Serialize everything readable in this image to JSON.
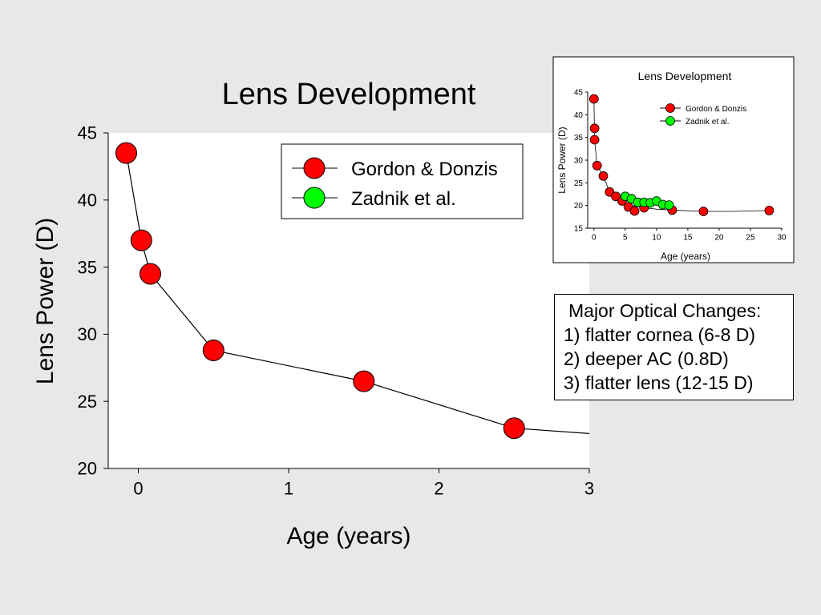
{
  "slide": {
    "background": "#e8e8e8"
  },
  "chart_data": [
    {
      "type": "line",
      "title": "Lens Development",
      "xlabel": "Age (years)",
      "ylabel": "Lens Power (D)",
      "xlim": [
        -0.2,
        3
      ],
      "ylim": [
        20,
        45
      ],
      "xticks": [
        0,
        1,
        2,
        3
      ],
      "yticks": [
        20,
        25,
        30,
        35,
        40,
        45
      ],
      "grid": false,
      "legend_position": "top-right",
      "series": [
        {
          "name": "Gordon & Donzis",
          "color": "#ff0000",
          "x": [
            -0.08,
            0.02,
            0.08,
            0.5,
            1.5,
            2.5
          ],
          "y": [
            43.5,
            37.0,
            34.5,
            28.8,
            26.5,
            23.0
          ]
        },
        {
          "name": "Zadnik et al.",
          "color": "#00ff00",
          "x": [],
          "y": []
        }
      ],
      "fit_line": {
        "x": [
          -0.08,
          0.02,
          0.08,
          0.5,
          1.5,
          2.5,
          3.0
        ],
        "y": [
          43.5,
          37.0,
          34.5,
          28.8,
          26.5,
          23.0,
          22.6
        ]
      }
    },
    {
      "type": "line",
      "title": "Lens Development",
      "xlabel": "Age (years)",
      "ylabel": "Lens Power (D)",
      "xlim": [
        -1,
        30
      ],
      "ylim": [
        15,
        45
      ],
      "xticks": [
        0,
        5,
        10,
        15,
        20,
        25,
        30
      ],
      "yticks": [
        15,
        20,
        25,
        30,
        35,
        40,
        45
      ],
      "grid": false,
      "legend_position": "top-right",
      "series": [
        {
          "name": "Gordon & Donzis",
          "color": "#ff0000",
          "x": [
            0,
            0.1,
            0.1,
            0.5,
            1.5,
            2.5,
            3.5,
            4.5,
            5.5,
            6.5,
            8,
            12.5,
            17.5,
            28
          ],
          "y": [
            43.5,
            37,
            34.5,
            28.8,
            26.5,
            23,
            22,
            21,
            19.7,
            18.8,
            19.5,
            19,
            18.7,
            18.9
          ]
        },
        {
          "name": "Zadnik et al.",
          "color": "#00ff00",
          "x": [
            5,
            6,
            7,
            8,
            9,
            10,
            11,
            12
          ],
          "y": [
            22,
            21.5,
            20.7,
            20.7,
            20.6,
            21,
            20.2,
            20.1
          ]
        }
      ],
      "fit_line": {
        "x": [
          0,
          0.1,
          0.5,
          1.5,
          2.5,
          4,
          6,
          8,
          10,
          12.5,
          17.5,
          22,
          28
        ],
        "y": [
          43.5,
          34.5,
          28.8,
          26.5,
          23,
          21.4,
          20,
          19.5,
          19.2,
          19,
          18.7,
          18.7,
          18.9
        ]
      }
    }
  ],
  "notes": {
    "title": "Major Optical Changes:",
    "items": [
      "1) flatter cornea (6-8 D)",
      "2) deeper AC (0.8D)",
      "3) flatter lens (12-15 D)"
    ]
  }
}
